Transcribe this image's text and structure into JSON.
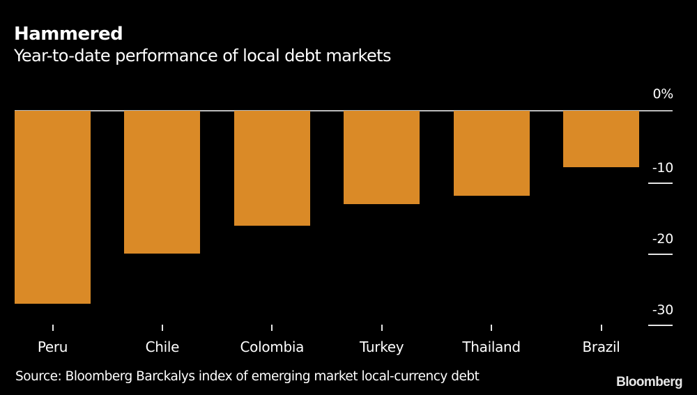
{
  "header": {
    "title": "Hammered",
    "subtitle": "Year-to-date performance of local debt markets"
  },
  "footer": {
    "source": "Source: Bloomberg Barckalys index of emerging market local-currency debt",
    "logo": "Bloomberg"
  },
  "colors": {
    "background": "#000000",
    "bar": "#DA8A27",
    "text": "#FFFFFF",
    "axis": "#BDBDBD"
  },
  "chart_data": {
    "type": "bar",
    "title": "Hammered",
    "subtitle": "Year-to-date performance of local debt markets",
    "categories": [
      "Peru",
      "Chile",
      "Colombia",
      "Turkey",
      "Thailand",
      "Brazil"
    ],
    "values": [
      -27.2,
      -20.1,
      -16.2,
      -13.1,
      -12.0,
      -7.9
    ],
    "xlabel": "",
    "ylabel": "%",
    "ylim": [
      -30,
      0
    ],
    "yticks": [
      "0%",
      "-10",
      "-20",
      "-30"
    ],
    "ytick_values": [
      0,
      -10,
      -20,
      -30
    ],
    "y_axis_position": "right",
    "grid": false,
    "legend": null,
    "source": "Source: Bloomberg Barckalys index of emerging market local-currency debt"
  }
}
